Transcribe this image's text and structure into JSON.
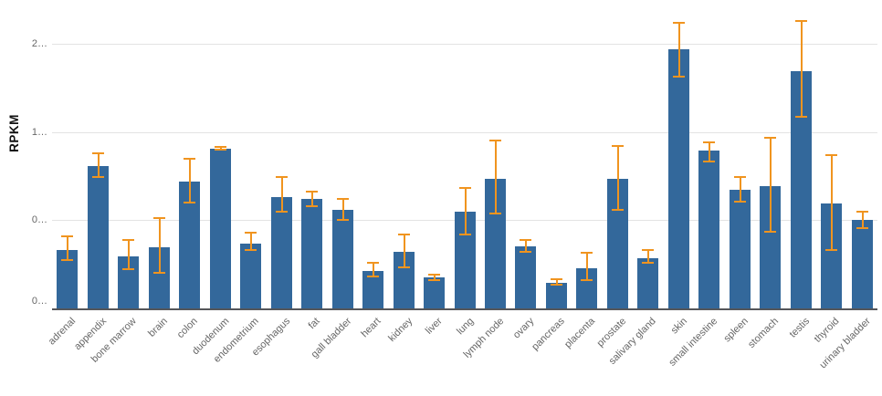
{
  "chart_data": {
    "type": "bar",
    "title": "",
    "xlabel": "",
    "ylabel": "RPKM",
    "legend_position": "none",
    "grid": true,
    "ylim": [
      0,
      2.53
    ],
    "yticks": {
      "values": [
        0,
        0.75,
        1.5,
        2.25
      ],
      "display_labels": [
        "0…",
        "0…",
        "1…",
        "2…"
      ]
    },
    "categories": [
      "adrenal",
      "appendix",
      "bone marrow",
      "brain",
      "colon",
      "duodenum",
      "endometrium",
      "esophagus",
      "fat",
      "gall bladder",
      "heart",
      "kidney",
      "liver",
      "lung",
      "lymph node",
      "ovary",
      "pancreas",
      "placenta",
      "prostate",
      "salivary gland",
      "skin",
      "small intestine",
      "spleen",
      "stomach",
      "testis",
      "thyroid",
      "urinary bladder"
    ],
    "series": [
      {
        "name": "RPKM",
        "values": [
          0.5,
          1.21,
          0.44,
          0.52,
          1.08,
          1.36,
          0.55,
          0.95,
          0.93,
          0.84,
          0.32,
          0.48,
          0.26,
          0.82,
          1.1,
          0.53,
          0.22,
          0.34,
          1.1,
          0.43,
          2.2,
          1.34,
          1.01,
          1.04,
          2.02,
          0.89,
          0.75
        ],
        "error_low": [
          0.41,
          1.12,
          0.33,
          0.3,
          0.9,
          1.35,
          0.5,
          0.82,
          0.87,
          0.75,
          0.27,
          0.35,
          0.24,
          0.63,
          0.81,
          0.48,
          0.2,
          0.24,
          0.84,
          0.39,
          1.97,
          1.25,
          0.91,
          0.65,
          1.63,
          0.5,
          0.68
        ],
        "error_high": [
          0.61,
          1.32,
          0.58,
          0.77,
          1.27,
          1.37,
          0.64,
          1.12,
          0.99,
          0.93,
          0.39,
          0.63,
          0.29,
          1.02,
          1.43,
          0.58,
          0.25,
          0.47,
          1.38,
          0.5,
          2.43,
          1.41,
          1.12,
          1.45,
          2.44,
          1.3,
          0.82
        ]
      }
    ],
    "colors": {
      "bar": "#33689b",
      "error_bar": "#f0941f",
      "gridline": "#e3e3e3",
      "axis_line": "#55565a",
      "tick_label": "#666666",
      "axis_title": "#111111",
      "background": "#ffffff"
    }
  }
}
